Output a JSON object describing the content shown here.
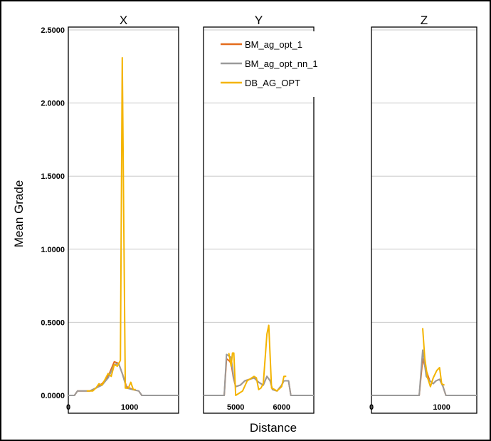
{
  "figure": {
    "ylabel": "Mean Grade",
    "xlabel": "Distance"
  },
  "colors": {
    "frame": "#000000",
    "grid": "#c8c8c8",
    "axis": "#000000"
  },
  "y_ticks": [
    "0.0000",
    "0.5000",
    "1.0000",
    "1.5000",
    "2.0000",
    "2.5000"
  ],
  "legend": [
    {
      "name": "BM_ag_opt_1",
      "color": "#e36c1c"
    },
    {
      "name": "BM_ag_opt_nn_1",
      "color": "#9a9a9a"
    },
    {
      "name": "DB_AG_OPT",
      "color": "#f4b400"
    }
  ],
  "chart_data": [
    {
      "type": "line",
      "title": "X",
      "xlim": [
        0,
        1800
      ],
      "ylim": [
        0,
        2.5
      ],
      "x_ticks": [
        {
          "value": 0,
          "label": "0"
        },
        {
          "value": 1000,
          "label": "1000"
        }
      ],
      "grid": true,
      "series": [
        {
          "name": "BM_ag_opt_1",
          "points": [
            [
              0,
              0
            ],
            [
              100,
              0
            ],
            [
              150,
              0.03
            ],
            [
              250,
              0.03
            ],
            [
              350,
              0.03
            ],
            [
              450,
              0.05
            ],
            [
              550,
              0.08
            ],
            [
              650,
              0.13
            ],
            [
              750,
              0.23
            ],
            [
              820,
              0.22
            ],
            [
              880,
              0.15
            ],
            [
              950,
              0.06
            ],
            [
              1050,
              0.04
            ],
            [
              1150,
              0.03
            ],
            [
              1200,
              0
            ],
            [
              1800,
              0
            ]
          ]
        },
        {
          "name": "BM_ag_opt_nn_1",
          "points": [
            [
              0,
              0
            ],
            [
              100,
              0
            ],
            [
              150,
              0.03
            ],
            [
              250,
              0.03
            ],
            [
              350,
              0.03
            ],
            [
              450,
              0.05
            ],
            [
              550,
              0.07
            ],
            [
              650,
              0.12
            ],
            [
              750,
              0.21
            ],
            [
              820,
              0.22
            ],
            [
              880,
              0.15
            ],
            [
              950,
              0.05
            ],
            [
              1050,
              0.04
            ],
            [
              1150,
              0.03
            ],
            [
              1200,
              0
            ],
            [
              1800,
              0
            ]
          ]
        },
        {
          "name": "DB_AG_OPT",
          "points": [
            [
              300,
              0.03
            ],
            [
              400,
              0.03
            ],
            [
              450,
              0.05
            ],
            [
              500,
              0.08
            ],
            [
              550,
              0.07
            ],
            [
              600,
              0.11
            ],
            [
              650,
              0.15
            ],
            [
              700,
              0.13
            ],
            [
              750,
              0.21
            ],
            [
              800,
              0.2
            ],
            [
              850,
              0.24
            ],
            [
              880,
              2.31
            ],
            [
              930,
              0.05
            ],
            [
              980,
              0.05
            ],
            [
              1020,
              0.09
            ],
            [
              1060,
              0.04
            ],
            [
              1100,
              0.04
            ]
          ]
        }
      ]
    },
    {
      "type": "line",
      "title": "Y",
      "xlim": [
        4300,
        6700
      ],
      "ylim": [
        0,
        2.5
      ],
      "x_ticks": [
        {
          "value": 5000,
          "label": "5000"
        },
        {
          "value": 6000,
          "label": "6000"
        }
      ],
      "grid": true,
      "series": [
        {
          "name": "BM_ag_opt_1",
          "points": [
            [
              4300,
              0
            ],
            [
              4750,
              0
            ],
            [
              4800,
              0.25
            ],
            [
              4850,
              0.24
            ],
            [
              4900,
              0.22
            ],
            [
              4950,
              0.12
            ],
            [
              5000,
              0.06
            ],
            [
              5100,
              0.07
            ],
            [
              5200,
              0.1
            ],
            [
              5300,
              0.11
            ],
            [
              5400,
              0.12
            ],
            [
              5500,
              0.09
            ],
            [
              5600,
              0.07
            ],
            [
              5680,
              0.13
            ],
            [
              5750,
              0.1
            ],
            [
              5800,
              0.04
            ],
            [
              5900,
              0.03
            ],
            [
              6000,
              0.07
            ],
            [
              6050,
              0.1
            ],
            [
              6150,
              0.1
            ],
            [
              6200,
              0
            ],
            [
              6700,
              0
            ]
          ]
        },
        {
          "name": "BM_ag_opt_nn_1",
          "points": [
            [
              4300,
              0
            ],
            [
              4750,
              0
            ],
            [
              4800,
              0.28
            ],
            [
              4850,
              0.27
            ],
            [
              4900,
              0.26
            ],
            [
              4950,
              0.13
            ],
            [
              5000,
              0.06
            ],
            [
              5100,
              0.07
            ],
            [
              5200,
              0.1
            ],
            [
              5300,
              0.11
            ],
            [
              5400,
              0.12
            ],
            [
              5500,
              0.09
            ],
            [
              5600,
              0.07
            ],
            [
              5680,
              0.13
            ],
            [
              5750,
              0.1
            ],
            [
              5800,
              0.04
            ],
            [
              5900,
              0.03
            ],
            [
              6000,
              0.07
            ],
            [
              6050,
              0.1
            ],
            [
              6150,
              0.1
            ],
            [
              6200,
              0
            ],
            [
              6700,
              0
            ]
          ]
        },
        {
          "name": "DB_AG_OPT",
          "points": [
            [
              4850,
              0.29
            ],
            [
              4900,
              0.2
            ],
            [
              4930,
              0.29
            ],
            [
              4960,
              0.29
            ],
            [
              5000,
              0
            ],
            [
              5100,
              0.02
            ],
            [
              5150,
              0.03
            ],
            [
              5250,
              0.1
            ],
            [
              5350,
              0.12
            ],
            [
              5400,
              0.13
            ],
            [
              5450,
              0.12
            ],
            [
              5500,
              0.04
            ],
            [
              5550,
              0.05
            ],
            [
              5600,
              0.08
            ],
            [
              5680,
              0.42
            ],
            [
              5720,
              0.48
            ],
            [
              5780,
              0.05
            ],
            [
              5850,
              0.04
            ],
            [
              5900,
              0.03
            ],
            [
              6000,
              0.06
            ],
            [
              6050,
              0.13
            ],
            [
              6100,
              0.13
            ]
          ]
        }
      ]
    },
    {
      "type": "line",
      "title": "Z",
      "xlim": [
        0,
        1500
      ],
      "ylim": [
        0,
        2.5
      ],
      "x_ticks": [
        {
          "value": 0,
          "label": "0"
        },
        {
          "value": 1000,
          "label": "1000"
        }
      ],
      "grid": true,
      "series": [
        {
          "name": "BM_ag_opt_1",
          "points": [
            [
              0,
              0
            ],
            [
              680,
              0
            ],
            [
              730,
              0.25
            ],
            [
              780,
              0.17
            ],
            [
              830,
              0.1
            ],
            [
              880,
              0.08
            ],
            [
              920,
              0.1
            ],
            [
              970,
              0.11
            ],
            [
              1020,
              0.06
            ],
            [
              1060,
              0
            ],
            [
              1500,
              0
            ]
          ]
        },
        {
          "name": "BM_ag_opt_nn_1",
          "points": [
            [
              0,
              0
            ],
            [
              680,
              0
            ],
            [
              730,
              0.31
            ],
            [
              780,
              0.13
            ],
            [
              830,
              0.1
            ],
            [
              880,
              0.08
            ],
            [
              920,
              0.1
            ],
            [
              970,
              0.11
            ],
            [
              1020,
              0.06
            ],
            [
              1060,
              0
            ],
            [
              1500,
              0
            ]
          ]
        },
        {
          "name": "DB_AG_OPT",
          "points": [
            [
              730,
              0.46
            ],
            [
              760,
              0.25
            ],
            [
              800,
              0.12
            ],
            [
              840,
              0.06
            ],
            [
              880,
              0.12
            ],
            [
              930,
              0.17
            ],
            [
              970,
              0.19
            ],
            [
              1000,
              0.08
            ],
            [
              1040,
              0.07
            ]
          ]
        }
      ]
    }
  ]
}
